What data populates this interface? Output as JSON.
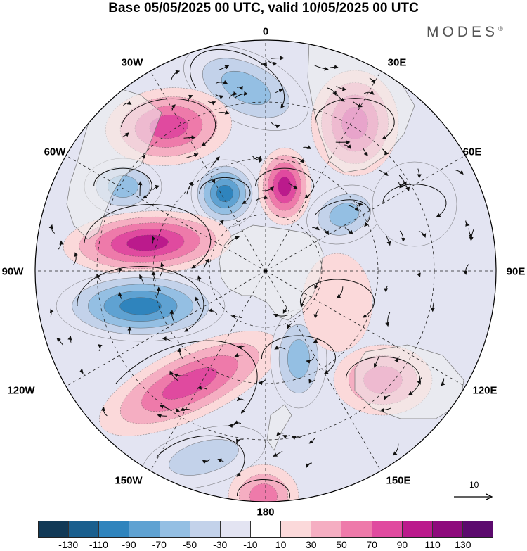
{
  "title": "Base 05/05/2025 00 UTC, valid 10/05/2025 00 UTC",
  "brand": "MODES",
  "brand_mark": "®",
  "longitude_labels": [
    {
      "id": "0",
      "text": "0"
    },
    {
      "id": "30E",
      "text": "30E"
    },
    {
      "id": "60E",
      "text": "60E"
    },
    {
      "id": "90E",
      "text": "90E"
    },
    {
      "id": "120E",
      "text": "120E"
    },
    {
      "id": "150E",
      "text": "150E"
    },
    {
      "id": "180",
      "text": "180"
    },
    {
      "id": "150W",
      "text": "150W"
    },
    {
      "id": "120W",
      "text": "120W"
    },
    {
      "id": "90W",
      "text": "90W"
    },
    {
      "id": "60W",
      "text": "60W"
    },
    {
      "id": "30W",
      "text": "30W"
    }
  ],
  "reference_vector": {
    "label": "10"
  },
  "colorbar": {
    "colors": [
      "#123a57",
      "#1a5f8e",
      "#2f84bd",
      "#5fa2d2",
      "#94bfe3",
      "#c3d2ea",
      "#e3e4f2",
      "#ffffff",
      "#fbd9da",
      "#f5aec2",
      "#ee7aaa",
      "#e04a9f",
      "#bb1a8c",
      "#8e0a7c",
      "#5c0a6e"
    ],
    "tick_labels": [
      "-130",
      "-110",
      "-90",
      "-70",
      "-50",
      "-30",
      "-10",
      "10",
      "30",
      "50",
      "70",
      "90",
      "110",
      "130"
    ]
  },
  "map_colors": {
    "land": "#eeeeee",
    "coast": "#777777",
    "graticule": "#222222",
    "border": "#000000"
  }
}
